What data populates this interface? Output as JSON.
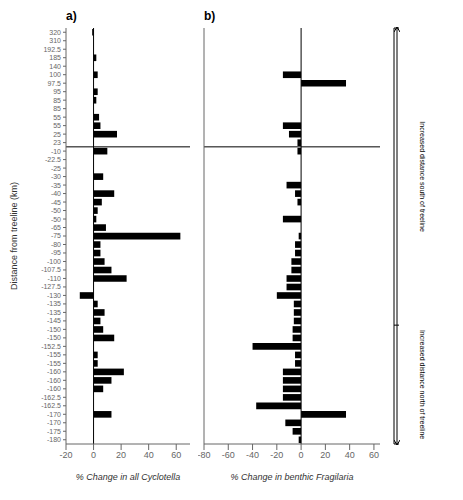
{
  "chart_data": [
    {
      "type": "bar",
      "orientation": "horizontal",
      "title": "a)",
      "xlabel": "% Change in all Cyclotella",
      "ylabel": "Distance from treeline (km)",
      "categories": [
        "-180",
        "-175",
        "-170",
        "-170",
        "-162.5",
        "-162.5",
        "-160",
        "-160",
        "-160",
        "-155",
        "-155",
        "-152.5",
        "-150",
        "-150",
        "-145",
        "-135",
        "-135",
        "-130",
        "-127.5",
        "-110",
        "-107.5",
        "-100",
        "-95",
        "-80",
        "-75",
        "-65",
        "-50",
        "-50",
        "-45",
        "-40",
        "-35",
        "-30",
        "-25",
        "-22.5",
        "-10",
        "23",
        "25",
        "55",
        "55",
        "85",
        "85",
        "95",
        "97.5",
        "100",
        "140",
        "185",
        "192.5",
        "310",
        "320"
      ],
      "values": [
        0,
        0,
        0,
        13,
        0,
        0,
        7,
        13,
        22,
        3,
        3,
        0,
        15,
        7,
        5,
        8,
        3,
        -10,
        0,
        24,
        13,
        8,
        5,
        5,
        63,
        9,
        2,
        3,
        6,
        15,
        0,
        7,
        0,
        0,
        10,
        0,
        17,
        5,
        4,
        0,
        2,
        3,
        0,
        3,
        0,
        2,
        0,
        0,
        -1
      ],
      "color": "#000000",
      "xlim": [
        -20,
        70
      ],
      "xticks": [
        -20,
        0,
        20,
        40,
        60
      ],
      "grid": false,
      "treeline_after_index": 34
    },
    {
      "type": "bar",
      "orientation": "horizontal",
      "title": "b)",
      "xlabel": "% Change in benthic Fragilaria",
      "categories": [
        "-180",
        "-175",
        "-170",
        "-170",
        "-162.5",
        "-162.5",
        "-160",
        "-160",
        "-160",
        "-155",
        "-155",
        "-152.5",
        "-150",
        "-150",
        "-145",
        "-135",
        "-135",
        "-130",
        "-127.5",
        "-110",
        "-107.5",
        "-100",
        "-95",
        "-80",
        "-75",
        "-65",
        "-50",
        "-50",
        "-45",
        "-40",
        "-35",
        "-30",
        "-25",
        "-22.5",
        "-10",
        "23",
        "25",
        "55",
        "55",
        "85",
        "85",
        "95",
        "97.5",
        "100",
        "140",
        "185",
        "192.5",
        "310",
        "320"
      ],
      "values": [
        -2,
        -7,
        -13,
        37,
        -37,
        -15,
        -15,
        -15,
        -15,
        -5,
        -5,
        -40,
        -7,
        -7,
        -6,
        -6,
        -6,
        -20,
        -12,
        -12,
        -8,
        -8,
        -5,
        -5,
        -2,
        0,
        -15,
        0,
        -3,
        -5,
        -12,
        0,
        0,
        0,
        -3,
        -3,
        -10,
        -15,
        0,
        0,
        0,
        0,
        37,
        -15,
        0,
        0,
        0,
        0,
        0
      ],
      "color": "#000000",
      "xlim": [
        -80,
        65
      ],
      "xticks": [
        -80,
        -60,
        -40,
        -20,
        0,
        20,
        40,
        60
      ],
      "grid": false,
      "tick_labels": "x",
      "treeline_after_index": 34,
      "annotations": [
        "Increased distance south of treeline",
        "Increased distance north of treeline"
      ]
    }
  ]
}
